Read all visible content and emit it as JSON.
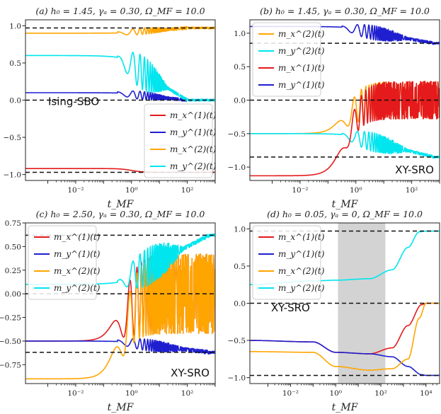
{
  "figure": {
    "description_panels": 4
  },
  "chart_data": [
    {
      "panel": "a",
      "type": "line",
      "title": "(a) h₀ = 1.45, γₐ = 0.30, Ω_MF = 10.0",
      "xlabel": "t_MF",
      "ylabel": "",
      "xscale": "log",
      "xlim_log10": [
        -3.8,
        3.0
      ],
      "ylim": [
        -1.08,
        1.08
      ],
      "xticks": [
        "10⁻²",
        "10⁰",
        "10²"
      ],
      "xtick_log10": [
        -2,
        0,
        2
      ],
      "yticks": [
        "1.0",
        "0.5",
        "0.0",
        "−0.5",
        "−1.0"
      ],
      "ytick_values": [
        1.0,
        0.5,
        0.0,
        -0.5,
        -1.0
      ],
      "hlines": [
        0.97,
        0.0,
        -0.97
      ],
      "annotation": "Ising-SBO",
      "legend_position": "lower-right",
      "series": [
        {
          "name": "m_x^(1)(t)",
          "color": "#e41a1c",
          "start": -0.92,
          "end": -0.97,
          "shape": "step",
          "t_change": 0.0
        },
        {
          "name": "m_y^(1)(t)",
          "color": "#1f1fd0",
          "start": 0.1,
          "end": 0.0,
          "shape": "oscdecay",
          "t_osc": -0.5,
          "t_end": 2.0
        },
        {
          "name": "m_x^(2)(t)",
          "color": "#ffa500",
          "start": 0.9,
          "end": 0.97,
          "shape": "oscdecay",
          "t_osc": -0.5,
          "t_end": 2.0
        },
        {
          "name": "m_y^(2)(t)",
          "color": "#00e5ee",
          "start": 0.6,
          "end": 0.0,
          "shape": "oscdecay",
          "t_osc": -0.5,
          "t_end": 2.0
        }
      ]
    },
    {
      "panel": "b",
      "type": "line",
      "title": "(b) h₀ = 1.45, γₐ = 0.30, Ω_MF = 10.0",
      "xlabel": "t_MF",
      "ylabel": "",
      "xscale": "log",
      "xlim_log10": [
        -3.8,
        3.0
      ],
      "ylim": [
        -1.2,
        1.2
      ],
      "xticks": [
        "10⁻²",
        "10⁰",
        "10²"
      ],
      "xtick_log10": [
        -2,
        0,
        2
      ],
      "yticks": [
        "1.0",
        "0.5",
        "0.0",
        "−0.5",
        "−1.0"
      ],
      "ytick_values": [
        1.0,
        0.5,
        0.0,
        -0.5,
        -1.0
      ],
      "hlines": [
        0.85,
        0.0,
        -0.85
      ],
      "annotation": "XY-SRO",
      "legend_position": "top-left",
      "series": [
        {
          "name": "m_x^(2)(t)",
          "color": "#ffa500",
          "start": -0.5,
          "end": 0.0,
          "shape": "rise_band",
          "band": 0.28
        },
        {
          "name": "m_y^(2)(t)",
          "color": "#00e5ee",
          "start": -0.5,
          "end": -0.85,
          "shape": "oscdecay",
          "t_osc": -0.5,
          "t_end": 2.8
        },
        {
          "name": "m_x^(1)(t)",
          "color": "#e41a1c",
          "start": -1.13,
          "end": 0.0,
          "shape": "rise_band",
          "band": 0.28
        },
        {
          "name": "m_y^(1)(t)",
          "color": "#1f1fd0",
          "start": 1.1,
          "end": 0.85,
          "shape": "oscdecay",
          "t_osc": -0.5,
          "t_end": 2.8
        }
      ]
    },
    {
      "panel": "c",
      "type": "line",
      "title": "(c) h₀ = 2.50, γₐ = 0.30, Ω_MF = 10.0",
      "xlabel": "t_MF",
      "ylabel": "",
      "xscale": "log",
      "xlim_log10": [
        -3.8,
        3.0
      ],
      "ylim": [
        -0.95,
        0.75
      ],
      "xticks": [
        "10⁻²",
        "10⁰",
        "10²"
      ],
      "xtick_log10": [
        -2,
        0,
        2
      ],
      "yticks": [
        "0.75",
        "0.50",
        "0.25",
        "0.00",
        "−0.25",
        "−0.50",
        "−0.75"
      ],
      "ytick_values": [
        0.75,
        0.5,
        0.25,
        0.0,
        -0.25,
        -0.5,
        -0.75
      ],
      "hlines": [
        0.62,
        0.0,
        -0.62
      ],
      "annotation": "XY-SRO",
      "legend_position": "top-left",
      "series": [
        {
          "name": "m_x^(1)(t)",
          "color": "#e41a1c",
          "start": -0.5,
          "end": 0.0,
          "shape": "rise_band",
          "band": 0.42
        },
        {
          "name": "m_y^(1)(t)",
          "color": "#1f1fd0",
          "start": -0.5,
          "end": -0.62,
          "shape": "oscdecay",
          "t_osc": -0.5,
          "t_end": 2.8
        },
        {
          "name": "m_x^(2)(t)",
          "color": "#ffa500",
          "start": -0.9,
          "end": 0.0,
          "shape": "rise_band",
          "band": 0.42
        },
        {
          "name": "m_y^(2)(t)",
          "color": "#00e5ee",
          "start": 0.1,
          "end": 0.62,
          "shape": "oscdecay",
          "t_osc": -0.5,
          "t_end": 2.8
        }
      ]
    },
    {
      "panel": "d",
      "type": "line",
      "title": "(d) h₀ = 0.05, γₐ = 0, Ω_MF = 10.0",
      "xlabel": "t_MF",
      "ylabel": "",
      "xscale": "log",
      "xlim_log10": [
        -3.8,
        4.6
      ],
      "ylim": [
        -1.08,
        1.08
      ],
      "xticks": [
        "10⁻²",
        "10⁰",
        "10²",
        "10⁴"
      ],
      "xtick_log10": [
        -2,
        0,
        2,
        4
      ],
      "yticks": [
        "1.0",
        "0.5",
        "0.0",
        "−0.5",
        "−1.0"
      ],
      "ytick_values": [
        1.0,
        0.5,
        0.0,
        -0.5,
        -1.0
      ],
      "hlines": [
        0.97,
        0.0,
        -0.97
      ],
      "shaded_region_log10": [
        0.1,
        2.2
      ],
      "annotation": "XY-SRO",
      "legend_position": "top-left",
      "series": [
        {
          "name": "m_x^(1)(t)",
          "color": "#e41a1c",
          "shape": "keypoints",
          "points": [
            [
              -3.8,
              -0.5
            ],
            [
              -1.0,
              -0.52
            ],
            [
              0.0,
              -0.66
            ],
            [
              1.5,
              -0.68
            ],
            [
              2.5,
              -0.6
            ],
            [
              3.2,
              -0.3
            ],
            [
              3.8,
              -0.02
            ],
            [
              4.0,
              0.0
            ]
          ]
        },
        {
          "name": "m_y^(1)(t)",
          "color": "#1f1fd0",
          "shape": "keypoints",
          "points": [
            [
              -3.8,
              -0.5
            ],
            [
              -1.0,
              -0.52
            ],
            [
              0.0,
              -0.66
            ],
            [
              1.5,
              -0.68
            ],
            [
              2.5,
              -0.72
            ],
            [
              3.2,
              -0.85
            ],
            [
              3.8,
              -0.96
            ],
            [
              4.0,
              -0.97
            ]
          ]
        },
        {
          "name": "m_x^(2)(t)",
          "color": "#ffa500",
          "shape": "keypoints",
          "points": [
            [
              -3.8,
              -0.65
            ],
            [
              -1.0,
              -0.66
            ],
            [
              0.0,
              -0.85
            ],
            [
              1.5,
              -0.9
            ],
            [
              2.5,
              -0.88
            ],
            [
              3.2,
              -0.75
            ],
            [
              3.7,
              -0.2
            ],
            [
              4.0,
              0.0
            ]
          ]
        },
        {
          "name": "m_y^(2)(t)",
          "color": "#00e5ee",
          "shape": "keypoints",
          "points": [
            [
              -3.8,
              0.25
            ],
            [
              -1.0,
              0.3
            ],
            [
              0.0,
              0.31
            ],
            [
              1.5,
              0.33
            ],
            [
              2.5,
              0.45
            ],
            [
              3.2,
              0.75
            ],
            [
              3.7,
              0.96
            ],
            [
              4.0,
              0.97
            ]
          ]
        }
      ]
    }
  ]
}
